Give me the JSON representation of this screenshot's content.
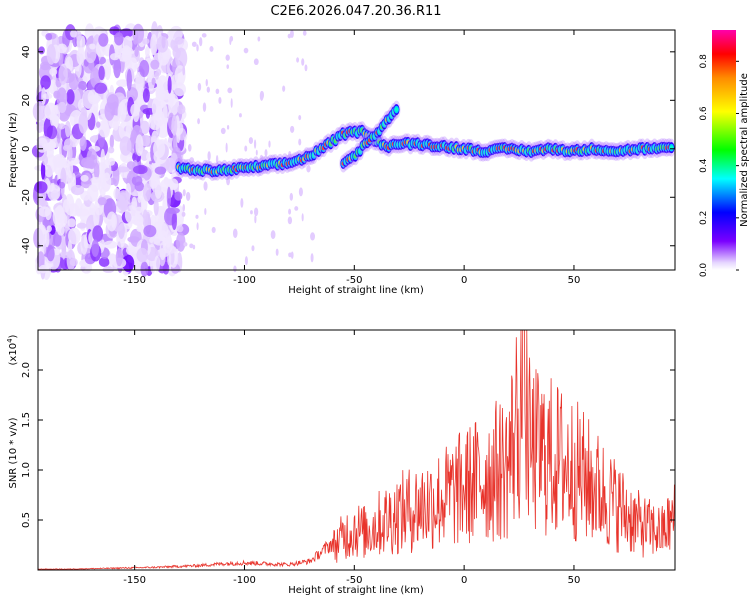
{
  "title": "C2E6.2026.047.20.36.R11",
  "chart_data": [
    {
      "type": "heatmap",
      "title": "C2E6.2026.047.20.36.R11",
      "xlabel": "Height of straight line (km)",
      "ylabel": "Frequency (Hz)",
      "xlim": [
        -194,
        96
      ],
      "ylim": [
        -50,
        49
      ],
      "xticks": [
        -150,
        -100,
        -50,
        0,
        50
      ],
      "yticks": [
        -40,
        -20,
        0,
        20,
        40
      ],
      "xtick_labels": [
        "-150",
        "-100",
        "-50",
        "0",
        "50"
      ],
      "ytick_labels": [
        "-40",
        "-20",
        "0",
        "20",
        "40"
      ],
      "colorbar": {
        "label": "Normalized spectral amplitude",
        "range": [
          0,
          0.92
        ],
        "ticks": [
          0.0,
          0.2,
          0.4,
          0.6,
          0.8
        ],
        "tick_labels": [
          "0.0",
          "0.2",
          "0.4",
          "0.6",
          "0.8"
        ]
      },
      "ridge": {
        "description_points_x": [
          -130,
          -120,
          -110,
          -100,
          -90,
          -80,
          -70,
          -60,
          -55,
          -50,
          -45,
          -40,
          -35,
          -30,
          -20,
          -10,
          0,
          10,
          20,
          30,
          40,
          50,
          60,
          70,
          80,
          90,
          95
        ],
        "frequency_y": [
          -8,
          -9,
          -9,
          -8,
          -7,
          -6,
          -3,
          3,
          6,
          7,
          7,
          3,
          1,
          2,
          2,
          1,
          0,
          -1,
          0,
          -1,
          0,
          -1,
          0,
          -1,
          0,
          0,
          0
        ]
      },
      "secondary_branch": {
        "x": [
          -55,
          -50,
          -45,
          -40,
          -35,
          -32,
          -30
        ],
        "frequency_y": [
          -6,
          -3,
          2,
          6,
          12,
          15,
          17
        ]
      },
      "noise_region_x": [
        -194,
        -128
      ]
    },
    {
      "type": "line",
      "xlabel": "Height of straight line (km)",
      "ylabel": "SNR (10 * v/v)",
      "multiplier": "(x10",
      "multiplier_exp": "4",
      "multiplier_close": ")",
      "xlim": [
        -194,
        96
      ],
      "ylim": [
        0,
        2.4
      ],
      "xticks": [
        -150,
        -100,
        -50,
        0,
        50
      ],
      "yticks": [
        0.5,
        1.0,
        1.5,
        2.0
      ],
      "xtick_labels": [
        "-150",
        "-100",
        "-50",
        "0",
        "50"
      ],
      "ytick_labels": [
        "0.5",
        "1.0",
        "1.5",
        "2.0"
      ],
      "color": "#e8332b",
      "series": [
        {
          "name": "SNR",
          "x": [
            -194,
            -180,
            -160,
            -140,
            -130,
            -120,
            -110,
            -100,
            -90,
            -80,
            -70,
            -60,
            -55,
            -50,
            -45,
            -40,
            -30,
            -20,
            -10,
            0,
            10,
            20,
            27,
            30,
            40,
            50,
            60,
            70,
            80,
            90,
            96
          ],
          "envelope": [
            0.01,
            0.01,
            0.02,
            0.03,
            0.04,
            0.05,
            0.07,
            0.08,
            0.07,
            0.06,
            0.1,
            0.3,
            0.45,
            0.55,
            0.5,
            0.6,
            0.75,
            0.85,
            0.95,
            1.1,
            1.25,
            1.4,
            2.4,
            1.6,
            1.5,
            1.35,
            1.1,
            0.85,
            0.6,
            0.5,
            0.7
          ]
        }
      ]
    }
  ]
}
